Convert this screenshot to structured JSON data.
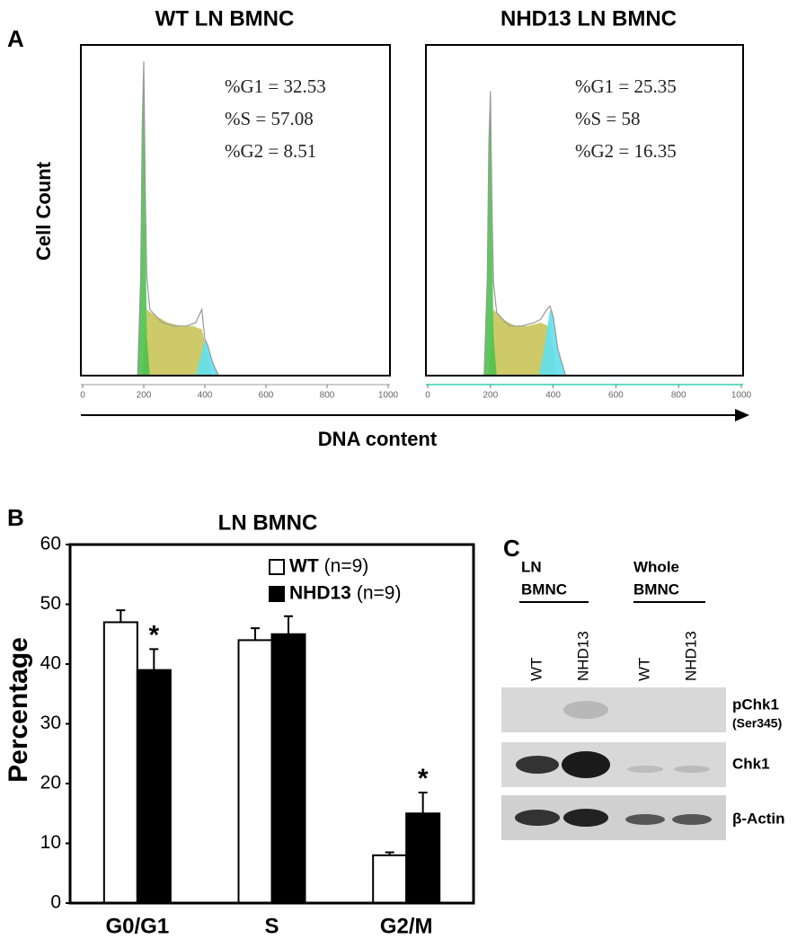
{
  "panel_labels": [
    "A",
    "B",
    "C"
  ],
  "panel_a": {
    "x_label": "DNA content",
    "y_label": "Cell Count"
  },
  "chart_data": [
    {
      "type": "histogram-area",
      "title": "WT LN BMNC",
      "annotations": [
        "%G1 = 32.53",
        "%S = 57.08",
        "%G2 = 8.51"
      ],
      "xlim": [
        0,
        1000
      ],
      "xticks": [
        0,
        200,
        400,
        600,
        800,
        1000
      ],
      "ylim": [
        0,
        100
      ],
      "series": [
        {
          "color": "#c9c45a",
          "fill": true,
          "x": [
            195,
            210,
            240,
            280,
            320,
            360,
            390,
            410,
            420
          ],
          "values": [
            0,
            20,
            18,
            16,
            15,
            15,
            14,
            6,
            0
          ]
        },
        {
          "color": "#4cc24c",
          "fill": true,
          "x": [
            180,
            190,
            195,
            200,
            205,
            210,
            220
          ],
          "values": [
            0,
            30,
            75,
            95,
            50,
            12,
            0
          ]
        },
        {
          "color": "#5fe0ee",
          "fill": true,
          "x": [
            370,
            390,
            400,
            410,
            425,
            445
          ],
          "values": [
            0,
            7,
            11,
            9,
            4,
            0
          ]
        },
        {
          "color": "#999999",
          "fill": false,
          "x": [
            180,
            190,
            195,
            200,
            205,
            210,
            220,
            260,
            300,
            340,
            370,
            390,
            400,
            410,
            425,
            445
          ],
          "values": [
            0,
            30,
            75,
            95,
            55,
            30,
            20,
            16,
            15,
            15,
            16,
            20,
            11,
            9,
            4,
            0
          ]
        }
      ]
    },
    {
      "type": "histogram-area",
      "title": "NHD13 LN BMNC",
      "annotations": [
        "%G1 = 25.35",
        "%S = 58",
        "%G2 = 16.35"
      ],
      "xlim": [
        0,
        1000
      ],
      "xticks": [
        0,
        200,
        400,
        600,
        800,
        1000
      ],
      "ylim": [
        0,
        100
      ],
      "series": [
        {
          "color": "#c9c45a",
          "fill": true,
          "x": [
            195,
            210,
            240,
            280,
            320,
            360,
            385,
            400,
            410
          ],
          "values": [
            0,
            20,
            17,
            15,
            15,
            16,
            15,
            8,
            0
          ]
        },
        {
          "color": "#4cc24c",
          "fill": true,
          "x": [
            180,
            190,
            195,
            200,
            205,
            210,
            220
          ],
          "values": [
            0,
            30,
            70,
            86,
            45,
            12,
            0
          ]
        },
        {
          "color": "#5fe0ee",
          "fill": true,
          "x": [
            355,
            375,
            390,
            400,
            415,
            440
          ],
          "values": [
            0,
            10,
            20,
            18,
            8,
            0
          ]
        },
        {
          "color": "#999999",
          "fill": false,
          "x": [
            180,
            190,
            195,
            200,
            205,
            210,
            220,
            260,
            300,
            340,
            360,
            380,
            390,
            400,
            415,
            440
          ],
          "values": [
            0,
            30,
            70,
            86,
            50,
            28,
            19,
            15,
            15,
            16,
            17,
            20,
            21,
            18,
            8,
            0
          ]
        }
      ]
    },
    {
      "type": "bar",
      "title": "LN BMNC",
      "y_label": "Percentage",
      "categories": [
        "G0/G1",
        "S",
        "G2/M"
      ],
      "ylim": [
        0,
        60
      ],
      "yticks": [
        0,
        10,
        20,
        30,
        40,
        50,
        60
      ],
      "legend_notes": [
        "(n=9)",
        "(n=9)"
      ],
      "series": [
        {
          "name": "WT",
          "color": "#ffffff",
          "values": [
            47,
            44,
            8
          ],
          "errors": [
            2,
            2,
            0.5
          ]
        },
        {
          "name": "NHD13",
          "color": "#000000",
          "values": [
            39,
            45,
            15
          ],
          "errors": [
            3.5,
            3,
            3.5
          ],
          "markers": [
            "*",
            null,
            "*"
          ]
        }
      ]
    }
  ],
  "blot": {
    "groups": [
      [
        "LN",
        "BMNC"
      ],
      [
        "Whole",
        "BMNC"
      ]
    ],
    "lanes": [
      "WT",
      "NHD13",
      "WT",
      "NHD13"
    ],
    "rows": [
      "pChk1",
      "Chk1",
      "β-Actin"
    ],
    "row_note": "(Ser345)"
  }
}
